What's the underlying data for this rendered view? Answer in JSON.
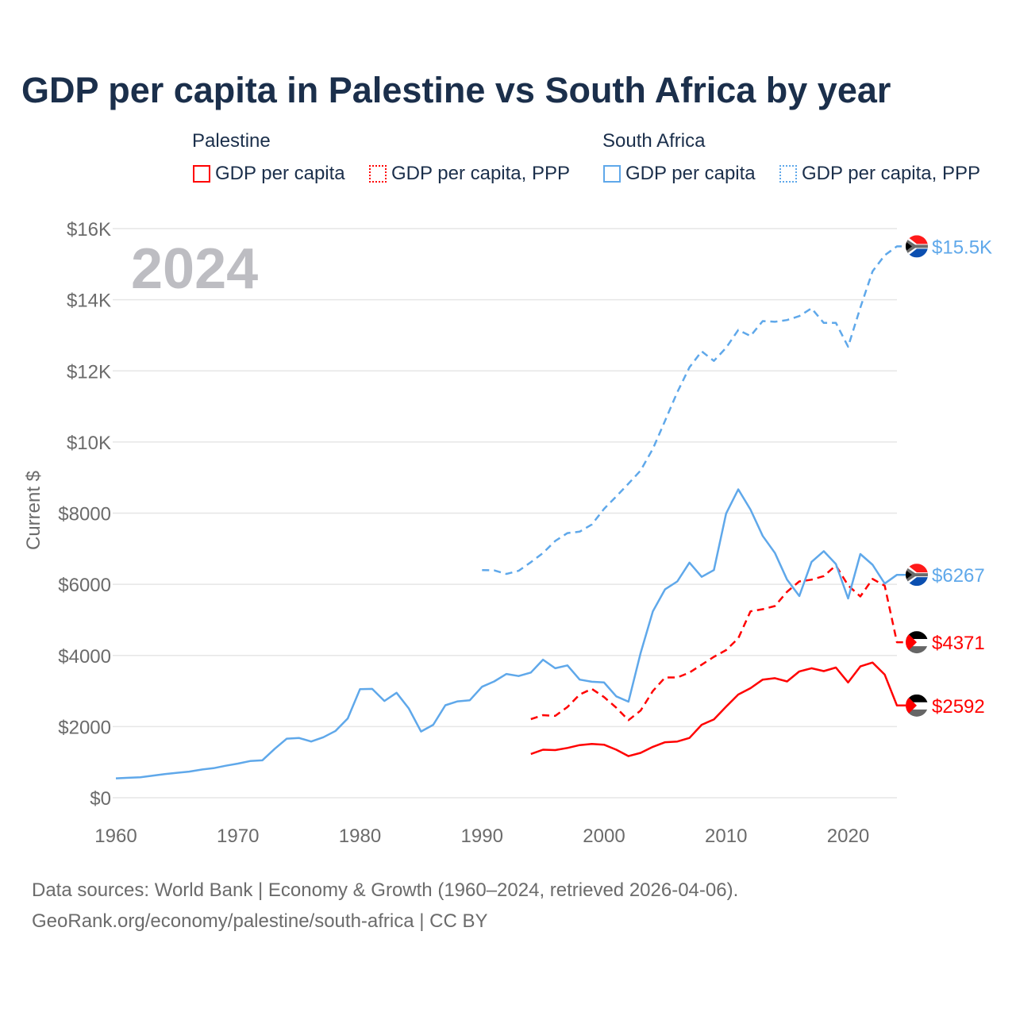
{
  "chart_data": {
    "type": "line",
    "title": "GDP per capita in Palestine vs South Africa by year",
    "ylabel": "Current $",
    "xlabel": "",
    "xlim": [
      1960,
      2024
    ],
    "ylim": [
      0,
      16000
    ],
    "x_ticks": [
      1960,
      1970,
      1980,
      1990,
      2000,
      2010,
      2020
    ],
    "x_tick_labels": [
      "1960",
      "1970",
      "1980",
      "1990",
      "2000",
      "2010",
      "2020"
    ],
    "y_ticks": [
      0,
      2000,
      4000,
      6000,
      8000,
      10000,
      12000,
      14000,
      16000
    ],
    "y_tick_labels": [
      "$0",
      "$2000",
      "$4000",
      "$6000",
      "$8000",
      "$10K",
      "$12K",
      "$14K",
      "$16K"
    ],
    "grid": true,
    "year_watermark": "2024",
    "legend_groups": [
      "Palestine",
      "South Africa"
    ],
    "series": [
      {
        "name": "GDP per capita",
        "group": "Palestine",
        "color": "#ff0000",
        "dash": "solid",
        "start": 1994,
        "end_label": "$2592",
        "values": [
          1230,
          1350,
          1340,
          1400,
          1480,
          1510,
          1490,
          1350,
          1170,
          1260,
          1430,
          1560,
          1580,
          1680,
          2050,
          2200,
          2560,
          2900,
          3080,
          3320,
          3360,
          3270,
          3550,
          3640,
          3560,
          3660,
          3240,
          3690,
          3800,
          3460,
          2592
        ]
      },
      {
        "name": "GDP per capita, PPP",
        "group": "Palestine",
        "color": "#ff0000",
        "dash": "dashed",
        "start": 1994,
        "end_label": "$4371",
        "values": [
          2210,
          2320,
          2300,
          2550,
          2900,
          3060,
          2830,
          2530,
          2180,
          2450,
          3000,
          3380,
          3380,
          3520,
          3740,
          3960,
          4150,
          4480,
          5240,
          5300,
          5390,
          5790,
          6080,
          6130,
          6230,
          6530,
          5970,
          5660,
          6150,
          5960,
          4371
        ]
      },
      {
        "name": "GDP per capita",
        "group": "South Africa",
        "color": "#5fa8ea",
        "dash": "solid",
        "start": 1960,
        "end_label": "$6267",
        "values": [
          545,
          560,
          575,
          620,
          665,
          700,
          735,
          790,
          830,
          900,
          960,
          1030,
          1050,
          1370,
          1660,
          1680,
          1580,
          1700,
          1880,
          2230,
          3050,
          3060,
          2720,
          2950,
          2510,
          1860,
          2050,
          2600,
          2710,
          2740,
          3120,
          3270,
          3480,
          3420,
          3520,
          3880,
          3640,
          3720,
          3320,
          3260,
          3240,
          2850,
          2700,
          4070,
          5240,
          5860,
          6080,
          6610,
          6210,
          6400,
          7990,
          8670,
          8100,
          7360,
          6880,
          6130,
          5670,
          6630,
          6930,
          6570,
          5600,
          6850,
          6550,
          6020,
          6267
        ]
      },
      {
        "name": "GDP per capita, PPP",
        "group": "South Africa",
        "color": "#5fa8ea",
        "dash": "dashed",
        "start": 1990,
        "end_label": "$15.5K",
        "values": [
          6400,
          6390,
          6290,
          6380,
          6620,
          6880,
          7220,
          7440,
          7480,
          7680,
          8120,
          8470,
          8830,
          9200,
          9810,
          10600,
          11400,
          12100,
          12550,
          12280,
          12650,
          13150,
          12980,
          13400,
          13380,
          13430,
          13540,
          13760,
          13350,
          13350,
          12680,
          13780,
          14800,
          15250,
          15500
        ]
      }
    ]
  },
  "footer": {
    "line1": "Data sources: World Bank | Economy & Growth (1960–2024, retrieved 2026-04-06).",
    "line2": "GeoRank.org/economy/palestine/south-africa | CC BY"
  }
}
